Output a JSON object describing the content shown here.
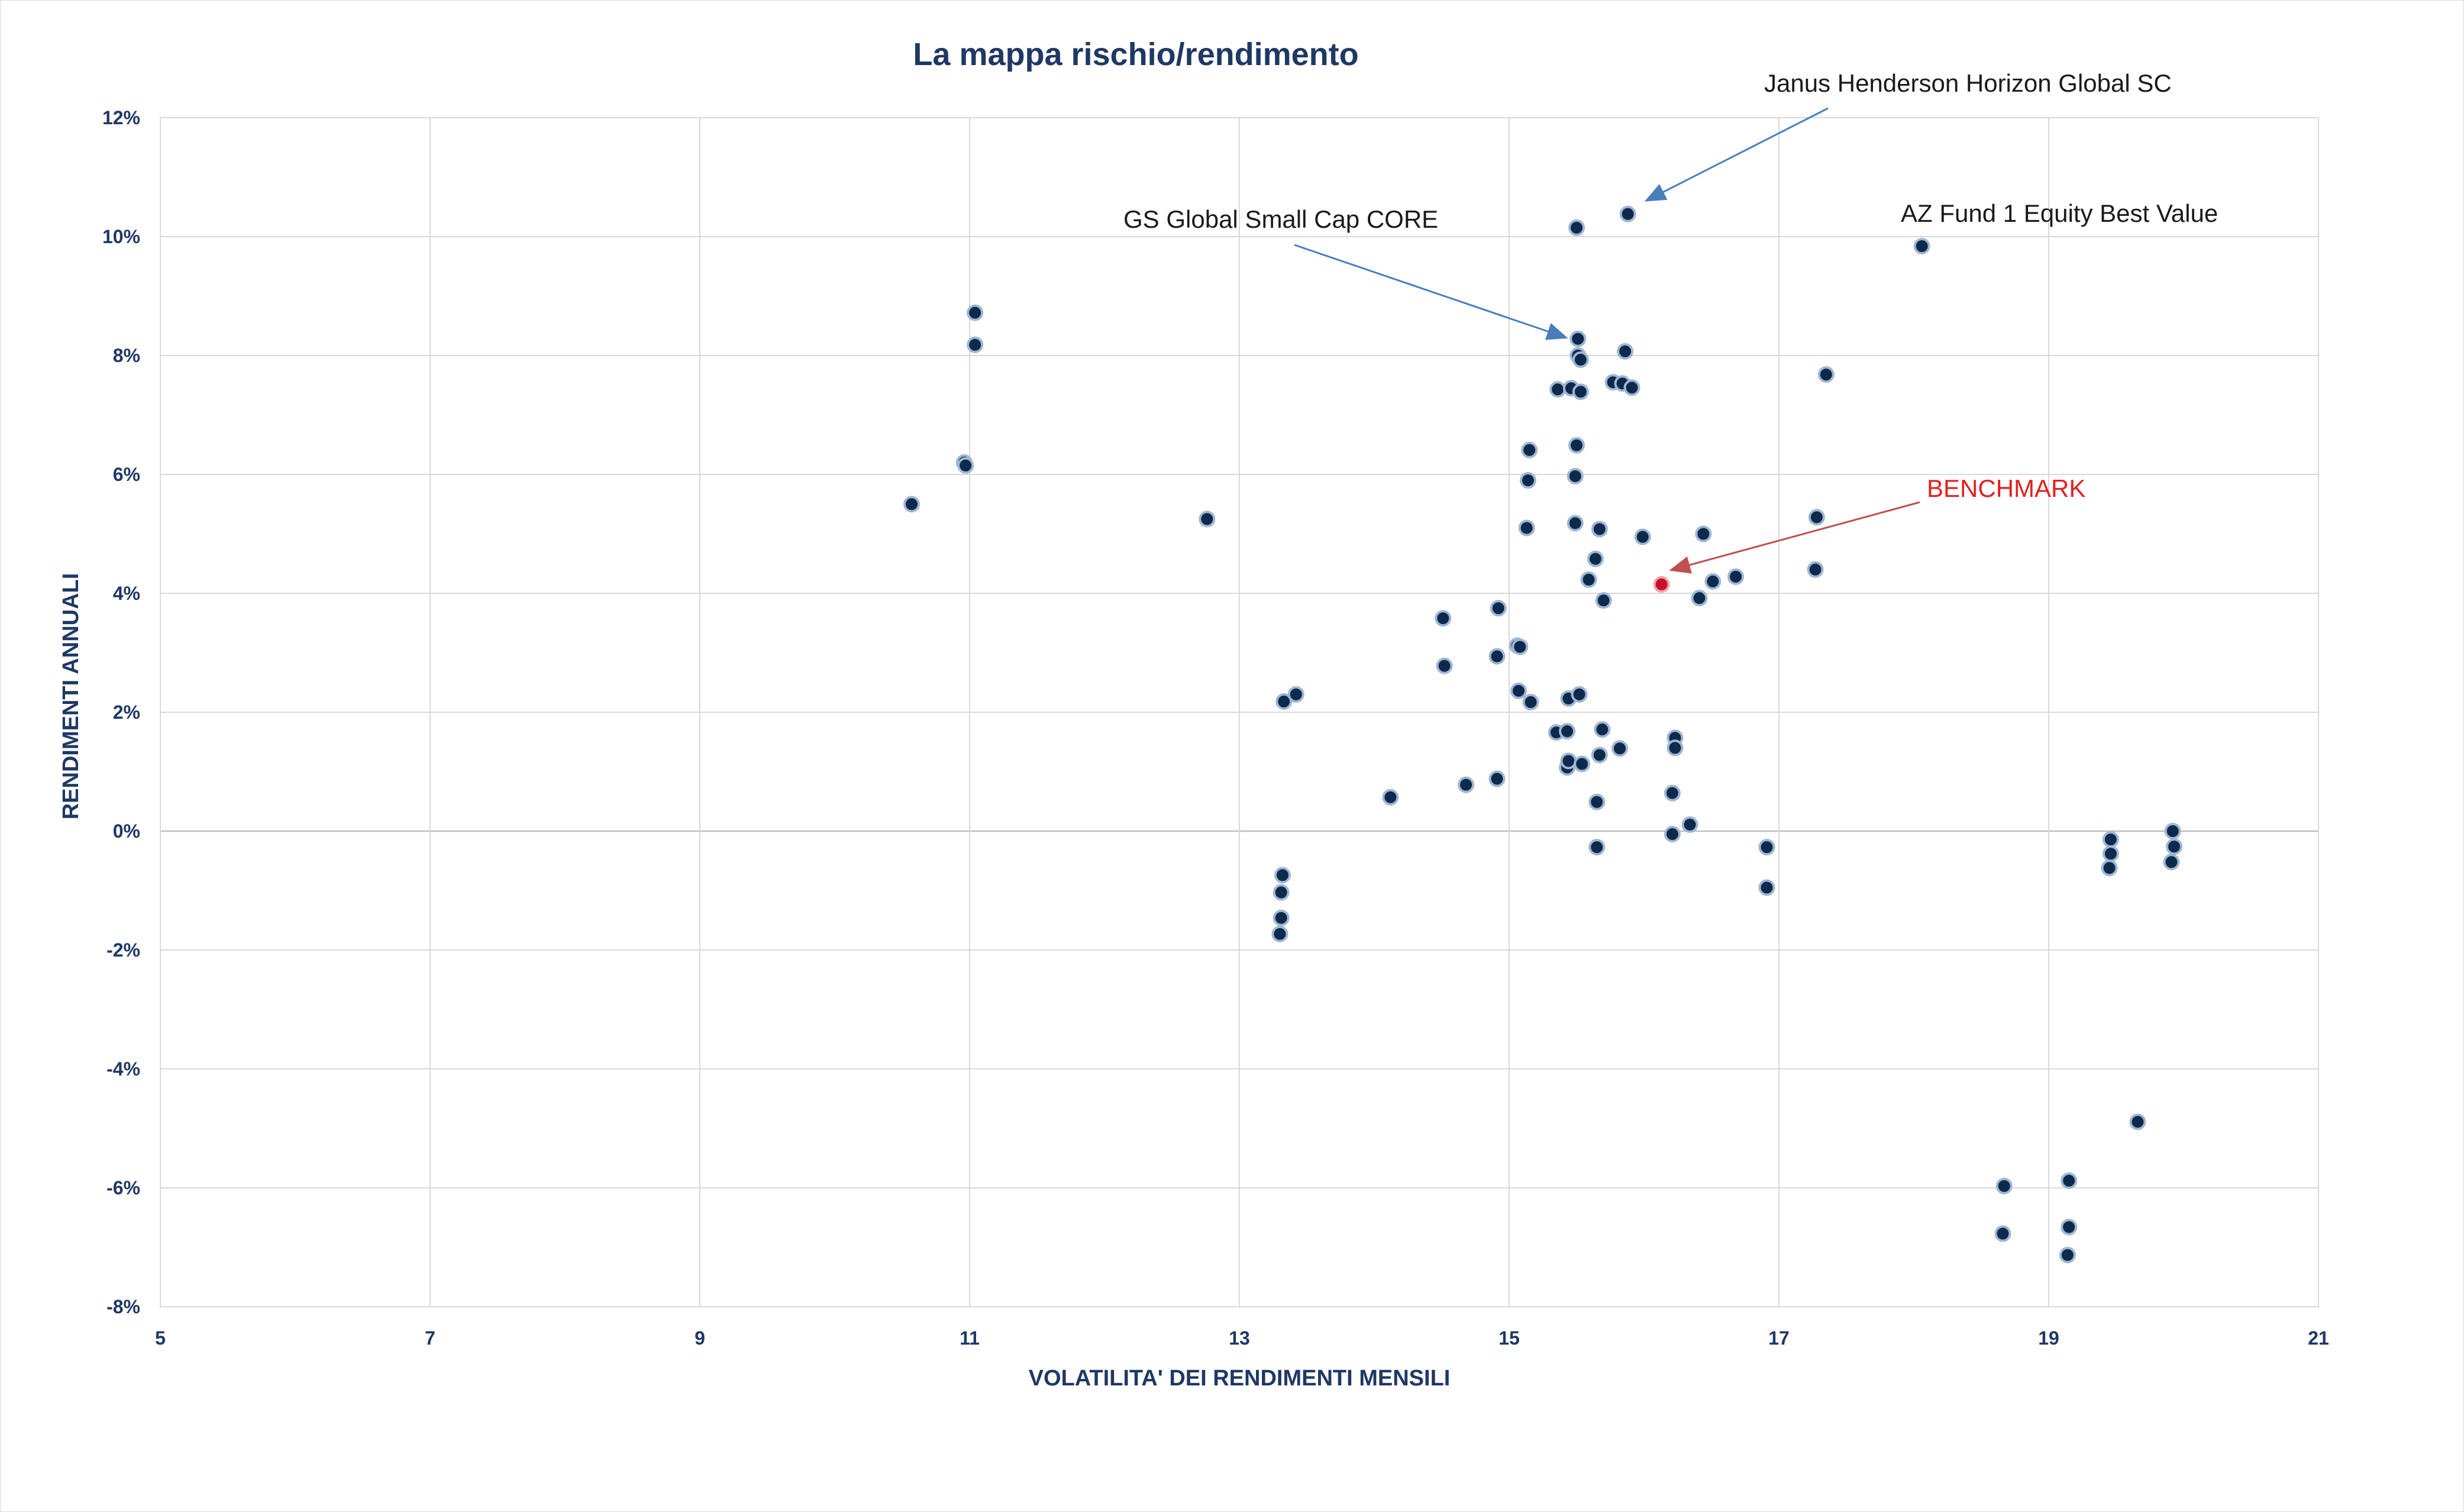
{
  "chart_data": {
    "type": "scatter",
    "title": "La mappa rischio/rendimento",
    "xlabel": "VOLATILITA' DEI RENDIMENTI MENSILI",
    "ylabel": "RENDIMENTI ANNUALI",
    "xlim": [
      5,
      21
    ],
    "ylim": [
      -8,
      12
    ],
    "x_ticks": [
      5,
      7,
      9,
      11,
      13,
      15,
      17,
      19,
      21
    ],
    "x_tick_labels": [
      "5",
      "7",
      "9",
      "11",
      "13",
      "15",
      "17",
      "19",
      "21"
    ],
    "y_ticks": [
      -8,
      -6,
      -4,
      -2,
      0,
      2,
      4,
      6,
      8,
      10,
      12
    ],
    "y_tick_labels": [
      "-8%",
      "-6%",
      "-4%",
      "-2%",
      "0%",
      "2%",
      "4%",
      "6%",
      "8%",
      "10%",
      "12%"
    ],
    "grid": true,
    "legend": "none",
    "colors": {
      "point_fill": "#0d2a4d",
      "point_edge": "#9fb6d3",
      "highlight": "#c8102e",
      "arrow_blue": "#4a7ebb",
      "arrow_red": "#c0504d",
      "text_dark": "#1f3864",
      "grid": "#d9d9d9"
    },
    "series": [
      {
        "points": [
          {
            "x": 10.57,
            "y": 5.5
          },
          {
            "x": 10.96,
            "y": 6.2
          },
          {
            "x": 10.97,
            "y": 6.15
          },
          {
            "x": 11.04,
            "y": 8.72
          },
          {
            "x": 11.04,
            "y": 8.18
          },
          {
            "x": 12.76,
            "y": 5.25
          },
          {
            "x": 13.33,
            "y": 2.18
          },
          {
            "x": 13.42,
            "y": 2.3
          },
          {
            "x": 13.32,
            "y": -0.74
          },
          {
            "x": 13.31,
            "y": -1.03
          },
          {
            "x": 13.31,
            "y": -1.46
          },
          {
            "x": 13.3,
            "y": -1.73
          },
          {
            "x": 14.12,
            "y": 0.57
          },
          {
            "x": 14.51,
            "y": 3.58
          },
          {
            "x": 14.52,
            "y": 2.78
          },
          {
            "x": 14.68,
            "y": 0.78
          },
          {
            "x": 14.91,
            "y": 2.94
          },
          {
            "x": 14.92,
            "y": 3.75
          },
          {
            "x": 14.91,
            "y": 0.88
          },
          {
            "x": 15.06,
            "y": 3.12
          },
          {
            "x": 15.08,
            "y": 3.1
          },
          {
            "x": 15.07,
            "y": 2.36
          },
          {
            "x": 15.13,
            "y": 5.1
          },
          {
            "x": 15.14,
            "y": 5.9
          },
          {
            "x": 15.15,
            "y": 6.41
          },
          {
            "x": 15.16,
            "y": 2.17
          },
          {
            "x": 15.35,
            "y": 1.66
          },
          {
            "x": 15.36,
            "y": 7.43
          },
          {
            "x": 15.43,
            "y": 1.68
          },
          {
            "x": 15.43,
            "y": 1.07
          },
          {
            "x": 15.44,
            "y": 1.18
          },
          {
            "x": 15.44,
            "y": 2.23
          },
          {
            "x": 15.46,
            "y": 7.45
          },
          {
            "x": 15.49,
            "y": 5.18
          },
          {
            "x": 15.49,
            "y": 5.97
          },
          {
            "x": 15.5,
            "y": 6.49
          },
          {
            "x": 15.5,
            "y": 10.15
          },
          {
            "x": 15.51,
            "y": 8.28
          },
          {
            "x": 15.51,
            "y": 8.0
          },
          {
            "x": 15.52,
            "y": 2.3
          },
          {
            "x": 15.53,
            "y": 7.93
          },
          {
            "x": 15.53,
            "y": 7.39
          },
          {
            "x": 15.54,
            "y": 1.13
          },
          {
            "x": 15.59,
            "y": 4.23
          },
          {
            "x": 15.64,
            "y": 4.58
          },
          {
            "x": 15.65,
            "y": 0.49
          },
          {
            "x": 15.65,
            "y": -0.27
          },
          {
            "x": 15.67,
            "y": 5.08
          },
          {
            "x": 15.67,
            "y": 1.28
          },
          {
            "x": 15.69,
            "y": 1.71
          },
          {
            "x": 15.7,
            "y": 3.88
          },
          {
            "x": 15.77,
            "y": 7.55
          },
          {
            "x": 15.82,
            "y": 1.39
          },
          {
            "x": 15.84,
            "y": 7.53
          },
          {
            "x": 15.86,
            "y": 8.07
          },
          {
            "x": 15.88,
            "y": 10.38
          },
          {
            "x": 15.91,
            "y": 7.46
          },
          {
            "x": 15.99,
            "y": 4.95
          },
          {
            "x": 16.21,
            "y": 0.64
          },
          {
            "x": 16.21,
            "y": -0.05
          },
          {
            "x": 16.23,
            "y": 1.57
          },
          {
            "x": 16.23,
            "y": 1.4
          },
          {
            "x": 16.34,
            "y": 0.11
          },
          {
            "x": 16.41,
            "y": 3.92
          },
          {
            "x": 16.44,
            "y": 5.0
          },
          {
            "x": 16.51,
            "y": 4.2
          },
          {
            "x": 16.68,
            "y": 4.28
          },
          {
            "x": 16.91,
            "y": -0.27
          },
          {
            "x": 16.91,
            "y": -0.95
          },
          {
            "x": 17.27,
            "y": 4.4
          },
          {
            "x": 17.28,
            "y": 5.28
          },
          {
            "x": 17.35,
            "y": 7.68
          },
          {
            "x": 18.06,
            "y": 9.84
          },
          {
            "x": 18.67,
            "y": -5.97
          },
          {
            "x": 18.66,
            "y": -6.77
          },
          {
            "x": 19.15,
            "y": -5.88
          },
          {
            "x": 19.15,
            "y": -6.66
          },
          {
            "x": 19.14,
            "y": -7.13
          },
          {
            "x": 19.46,
            "y": -0.14
          },
          {
            "x": 19.46,
            "y": -0.38
          },
          {
            "x": 19.45,
            "y": -0.62
          },
          {
            "x": 19.66,
            "y": -4.89
          },
          {
            "x": 19.92,
            "y": 0.0
          },
          {
            "x": 19.93,
            "y": -0.26
          },
          {
            "x": 19.91,
            "y": -0.52
          }
        ]
      }
    ],
    "highlight_point": {
      "x": 16.13,
      "y": 4.15
    },
    "annotations": [
      {
        "text": "Janus Henderson Horizon Global SC",
        "target": {
          "x": 15.88,
          "y": 10.38
        },
        "arrow_color": "#4a7ebb"
      },
      {
        "text": "GS Global Small Cap CORE",
        "target": {
          "x": 15.51,
          "y": 8.28
        },
        "arrow_color": "#4a7ebb"
      },
      {
        "text": "AZ Fund 1 Equity Best Value",
        "target": {
          "x": 18.06,
          "y": 9.84
        },
        "arrow_color": null
      },
      {
        "text": "BENCHMARK",
        "target": {
          "x": 16.13,
          "y": 4.15
        },
        "arrow_color": "#c0504d",
        "highlight": true
      }
    ]
  }
}
